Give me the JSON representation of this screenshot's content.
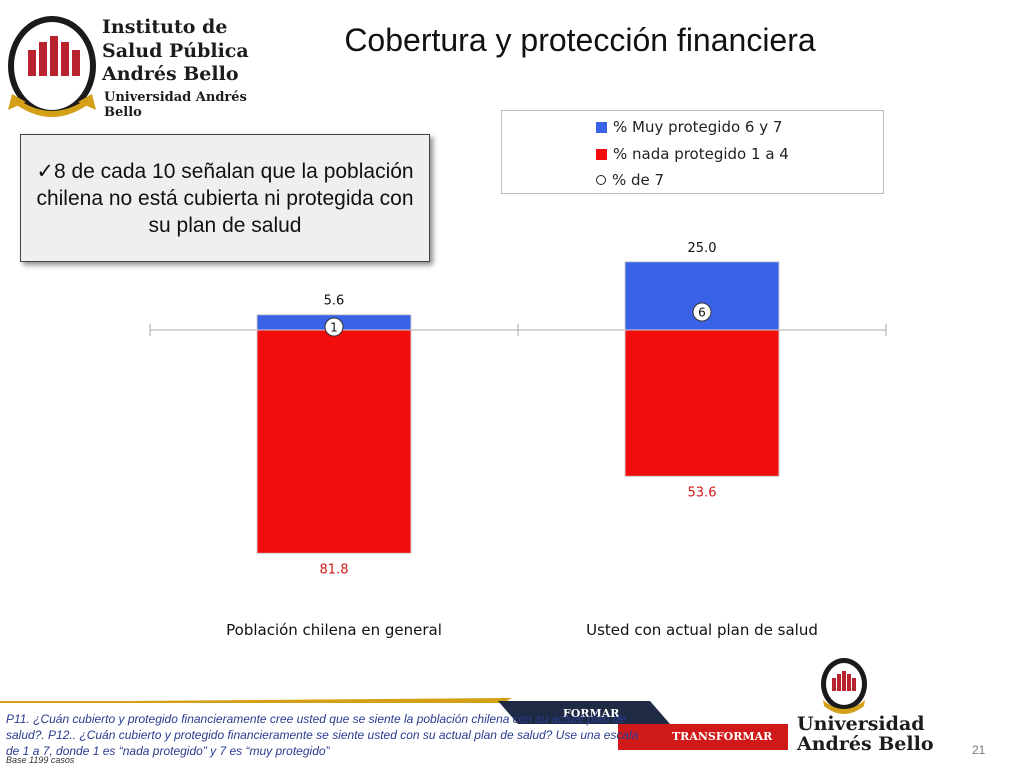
{
  "header": {
    "logo_line1": "Instituto de",
    "logo_line2": "Salud Pública",
    "logo_line3": "Andrés Bello",
    "logo_line4": "Universidad Andrés Bello",
    "title": "Cobertura y protección financiera"
  },
  "callout": {
    "text": "✓8 de cada 10 señalan que la población chilena no está cubierta ni protegida con su plan de salud"
  },
  "legend": {
    "items": [
      {
        "label": "% Muy protegido 6 y 7",
        "marker": "square",
        "color": "#3a62e6"
      },
      {
        "label": "% nada protegido 1 a 4",
        "marker": "square",
        "color": "#f20d0d"
      },
      {
        "label": "% de 7",
        "marker": "circle",
        "color": "#222222"
      }
    ]
  },
  "chart_data": {
    "type": "bar",
    "stacked": "diverging",
    "categories": [
      "Población chilena en general",
      "Usted con actual plan de salud"
    ],
    "series": [
      {
        "name": "% Muy protegido 6 y 7",
        "values": [
          5.6,
          25.0
        ],
        "color": "#3a62e6",
        "value_labels": [
          "5.6",
          "25.0"
        ],
        "direction": "up"
      },
      {
        "name": "% nada protegido 1 a 4",
        "values": [
          81.8,
          53.6
        ],
        "color": "#f20d0d",
        "value_labels": [
          "81.8",
          "53.6"
        ],
        "direction": "down"
      },
      {
        "name": "% de 7",
        "values": [
          1,
          6
        ],
        "marker": "circle",
        "value_labels": [
          "1",
          "6"
        ]
      }
    ],
    "legend_position": "top-right",
    "grid": false
  },
  "footer": {
    "question": "P11. ¿Cuán cubierto y protegido financieramente cree usted que se siente la población chilena con su actual plan de salud?. P12.. ¿Cuán cubierto y protegido financieramente se siente usted con su actual plan de salud?   Use una escala de 1 a 7, donde 1 es “nada protegido” y 7 es “muy protegido”",
    "base": "Base 1199 casos",
    "banner_formar": "FORMAR",
    "banner_transformar": "TRANSFORMAR",
    "logo_line1": "Universidad",
    "logo_line2": "Andrés Bello",
    "page_number": "21"
  }
}
